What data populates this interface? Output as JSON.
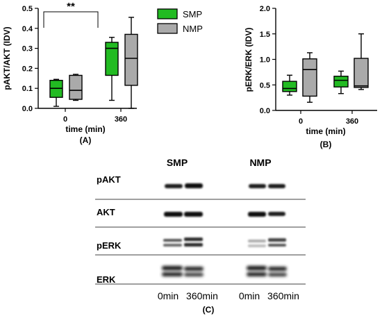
{
  "chart_data": [
    {
      "type": "box",
      "panel": "(A)",
      "xlabel": "time (min)",
      "ylabel": "pAKT/AKT (IDV)",
      "ylim": [
        0,
        0.5
      ],
      "yticks": [
        "0.0",
        "0.1",
        "0.2",
        "0.3",
        "0.4",
        "0.5"
      ],
      "categories": [
        "0",
        "360"
      ],
      "significance": "**",
      "series": [
        {
          "name": "SMP",
          "color": "#22bb22",
          "boxes": [
            {
              "min": 0.01,
              "q1": 0.055,
              "median": 0.1,
              "q3": 0.14,
              "max": 0.145
            },
            {
              "min": 0.04,
              "q1": 0.165,
              "median": 0.3,
              "q3": 0.33,
              "max": 0.355
            }
          ]
        },
        {
          "name": "NMP",
          "color": "#aaaaaa",
          "boxes": [
            {
              "min": 0.04,
              "q1": 0.045,
              "median": 0.09,
              "q3": 0.165,
              "max": 0.17
            },
            {
              "min": 0.0,
              "q1": 0.115,
              "median": 0.25,
              "q3": 0.37,
              "max": 0.455
            }
          ]
        }
      ]
    },
    {
      "type": "box",
      "panel": "(B)",
      "xlabel": "time (min)",
      "ylabel": "pERK/ERK (IDV)",
      "ylim": [
        0,
        2.0
      ],
      "yticks": [
        "0.0",
        "0.5",
        "1.0",
        "1.5",
        "2.0"
      ],
      "categories": [
        "0",
        "360"
      ],
      "series": [
        {
          "name": "SMP",
          "color": "#22bb22",
          "boxes": [
            {
              "min": 0.3,
              "q1": 0.37,
              "median": 0.43,
              "q3": 0.57,
              "max": 0.69
            },
            {
              "min": 0.33,
              "q1": 0.46,
              "median": 0.59,
              "q3": 0.67,
              "max": 0.77
            }
          ]
        },
        {
          "name": "NMP",
          "color": "#aaaaaa",
          "boxes": [
            {
              "min": 0.16,
              "q1": 0.28,
              "median": 0.8,
              "q3": 1.01,
              "max": 1.13
            },
            {
              "min": 0.41,
              "q1": 0.45,
              "median": 0.48,
              "q3": 1.02,
              "max": 1.5
            }
          ]
        }
      ]
    }
  ],
  "legend": [
    {
      "label": "SMP",
      "color": "#22bb22"
    },
    {
      "label": "NMP",
      "color": "#aaaaaa"
    }
  ],
  "blot": {
    "group_labels": [
      "SMP",
      "NMP"
    ],
    "row_labels": [
      "pAKT",
      "AKT",
      "pERK",
      "ERK"
    ],
    "lane_labels": [
      "0min",
      "360min",
      "0min",
      "360min"
    ],
    "panel": "(C)"
  }
}
